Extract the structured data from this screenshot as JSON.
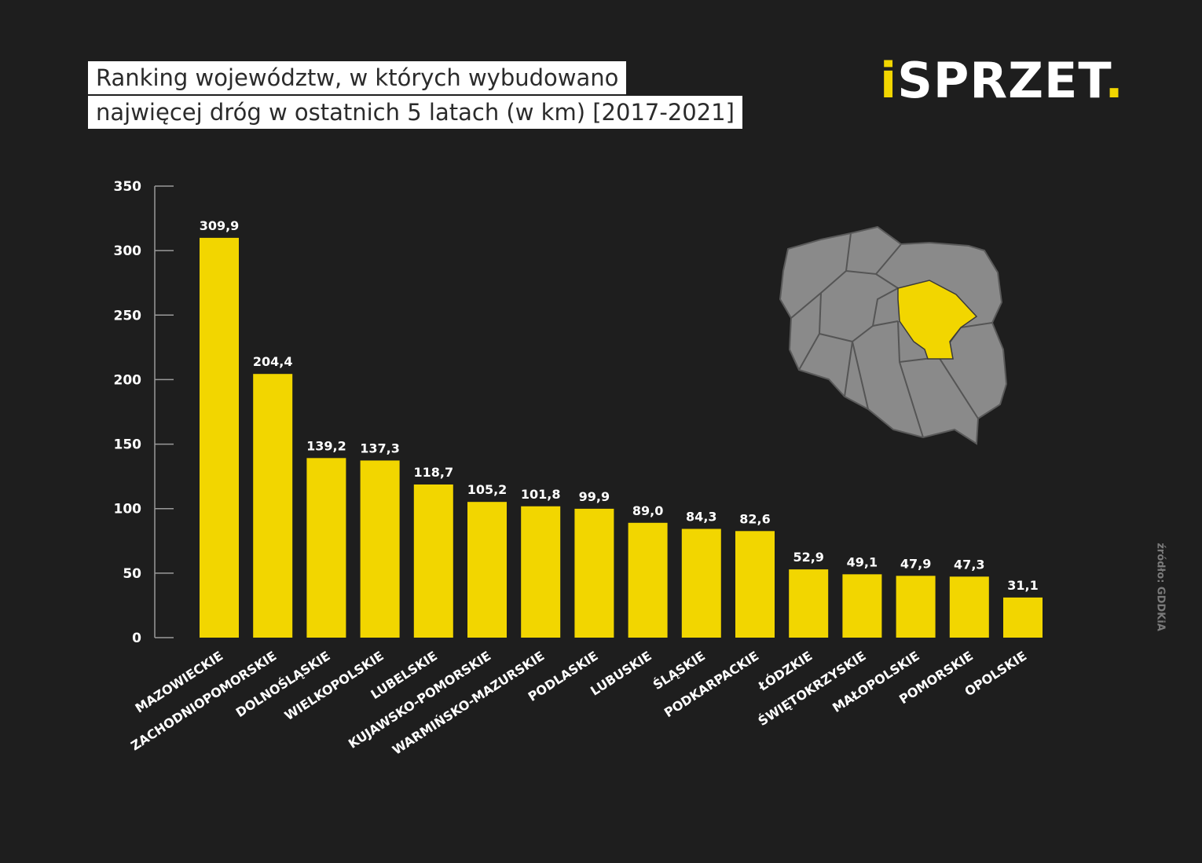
{
  "title_line_1": "Ranking województw, w których wybudowano",
  "title_line_2": "najwięcej dróg w ostatnich 5 latach (w km) [2017-2021]",
  "logo": {
    "i": "i",
    "text": "SPRZET",
    "dot": "."
  },
  "source": "źródło: GDDKiA",
  "colors": {
    "bar": "#f2d600",
    "background": "#1e1e1e",
    "axis": "#9a9a9a",
    "map_region": "#8a8a8a",
    "map_highlight": "#f2d600"
  },
  "map": {
    "highlighted_region": "MAZOWIECKIE"
  },
  "chart_data": {
    "type": "bar",
    "title": "Ranking województw, w których wybudowano najwięcej dróg w ostatnich 5 latach (w km) [2017-2021]",
    "categories": [
      "MAZOWIECKIE",
      "ZACHODNIOPOMORSKIE",
      "DOLNOŚLĄSKIE",
      "WIELKOPOLSKIE",
      "LUBELSKIE",
      "KUJAWSKO-POMORSKIE",
      "WARMIŃSKO-MAZURSKIE",
      "PODLASKIE",
      "LUBUSKIE",
      "ŚLĄSKIE",
      "PODKARPACKIE",
      "ŁÓDZKIE",
      "ŚWIĘTOKRZYSKIE",
      "MAŁOPOLSKIE",
      "POMORSKIE",
      "OPOLSKIE"
    ],
    "values": [
      309.9,
      204.4,
      139.2,
      137.3,
      118.7,
      105.2,
      101.8,
      99.9,
      89.0,
      84.3,
      82.6,
      52.9,
      49.1,
      47.9,
      47.3,
      31.1
    ],
    "value_labels": [
      "309,9",
      "204,4",
      "139,2",
      "137,3",
      "118,7",
      "105,2",
      "101,8",
      "99,9",
      "89,0",
      "84,3",
      "82,6",
      "52,9",
      "49,1",
      "47,9",
      "47,3",
      "31,1"
    ],
    "yticks": [
      "0",
      "50",
      "100",
      "150",
      "200",
      "250",
      "300",
      "350"
    ],
    "ylim": [
      0,
      350
    ],
    "xlabel": "",
    "ylabel": "",
    "grid": false,
    "legend": "none"
  }
}
